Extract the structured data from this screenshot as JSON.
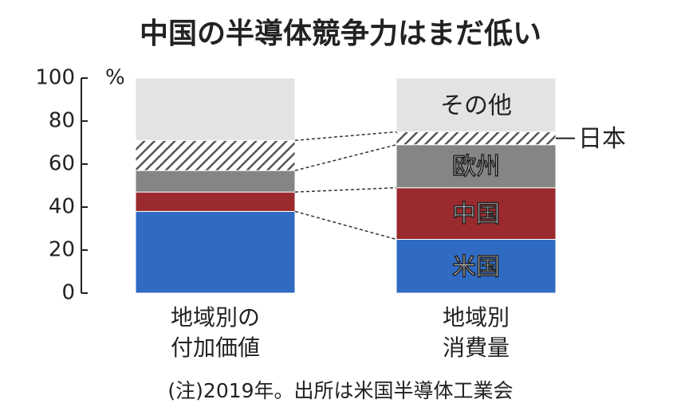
{
  "chart_data": {
    "type": "stacked_bar",
    "title": "中国の半導体競争力はまだ低い",
    "unit": "%",
    "categories": [
      "地域別の\n付加価値",
      "地域別\n消費量"
    ],
    "series": [
      {
        "name": "米国",
        "color": "#2f6bc3",
        "values": [
          38,
          25
        ]
      },
      {
        "name": "中国",
        "color": "#9a2a2e",
        "values": [
          9,
          24
        ]
      },
      {
        "name": "欧州",
        "color": "#858585",
        "values": [
          10,
          20
        ]
      },
      {
        "name": "日本",
        "color": "#555555",
        "pattern": "hatch",
        "values": [
          14,
          6
        ]
      },
      {
        "name": "その他",
        "color": "#e3e3e3",
        "values": [
          29,
          25
        ]
      }
    ],
    "ylim": [
      0,
      100
    ],
    "yticks": [
      0,
      20,
      40,
      60,
      80,
      100
    ],
    "note": "(注)2019年。出所は米国半導体工業会"
  }
}
